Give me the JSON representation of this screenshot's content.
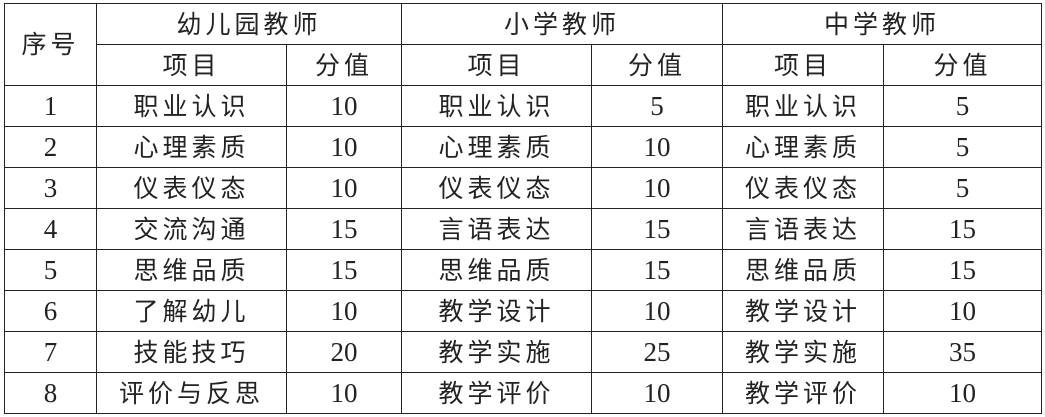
{
  "header": {
    "index_label": "序号",
    "groups": [
      "幼儿园教师",
      "小学教师",
      "中学教师"
    ],
    "item_label": "项目",
    "score_label": "分值"
  },
  "rows": [
    {
      "no": "1",
      "k_item": "职业认识",
      "k_score": "10",
      "p_item": "职业认识",
      "p_score": "5",
      "m_item": "职业认识",
      "m_score": "5"
    },
    {
      "no": "2",
      "k_item": "心理素质",
      "k_score": "10",
      "p_item": "心理素质",
      "p_score": "10",
      "m_item": "心理素质",
      "m_score": "5"
    },
    {
      "no": "3",
      "k_item": "仪表仪态",
      "k_score": "10",
      "p_item": "仪表仪态",
      "p_score": "10",
      "m_item": "仪表仪态",
      "m_score": "5"
    },
    {
      "no": "4",
      "k_item": "交流沟通",
      "k_score": "15",
      "p_item": "言语表达",
      "p_score": "15",
      "m_item": "言语表达",
      "m_score": "15"
    },
    {
      "no": "5",
      "k_item": "思维品质",
      "k_score": "15",
      "p_item": "思维品质",
      "p_score": "15",
      "m_item": "思维品质",
      "m_score": "15"
    },
    {
      "no": "6",
      "k_item": "了解幼儿",
      "k_score": "10",
      "p_item": "教学设计",
      "p_score": "10",
      "m_item": "教学设计",
      "m_score": "10"
    },
    {
      "no": "7",
      "k_item": "技能技巧",
      "k_score": "20",
      "p_item": "教学实施",
      "p_score": "25",
      "m_item": "教学实施",
      "m_score": "35"
    },
    {
      "no": "8",
      "k_item": "评价与反思",
      "k_score": "10",
      "p_item": "教学评价",
      "p_score": "10",
      "m_item": "教学评价",
      "m_score": "10"
    }
  ]
}
